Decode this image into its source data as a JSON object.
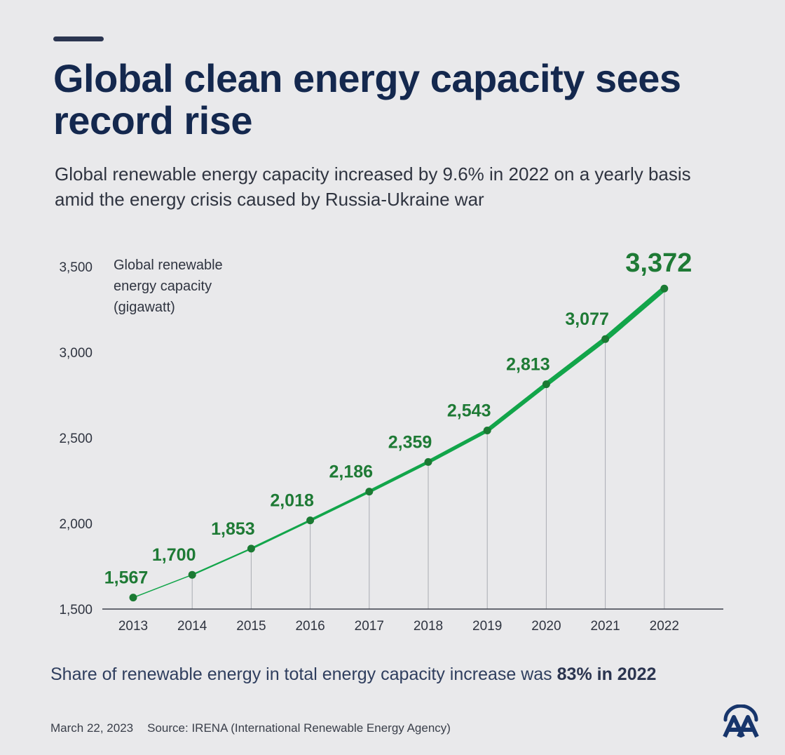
{
  "header": {
    "title": "Global clean energy capacity sees record rise",
    "subtitle": "Global renewable energy capacity increased by 9.6% in 2022 on a yearly basis amid the energy crisis caused by Russia-Ukraine war"
  },
  "chart_data": {
    "type": "line",
    "ylabel_lines": [
      "Global renewable",
      "energy capacity",
      "(gigawatt)"
    ],
    "x": [
      "2013",
      "2014",
      "2015",
      "2016",
      "2017",
      "2018",
      "2019",
      "2020",
      "2021",
      "2022"
    ],
    "values": [
      1567,
      1700,
      1853,
      2018,
      2186,
      2359,
      2543,
      2813,
      3077,
      3372
    ],
    "value_labels": [
      "1,567",
      "1,700",
      "1,853",
      "2,018",
      "2,186",
      "2,359",
      "2,543",
      "2,813",
      "3,077",
      "3,372"
    ],
    "ylim": [
      1500,
      3500
    ],
    "yticks": [
      1500,
      2000,
      2500,
      3000,
      3500
    ],
    "ytick_labels": [
      "1,500",
      "2,000",
      "2,500",
      "3,000",
      "3,500"
    ],
    "grid": false,
    "line_color": "#12a54a",
    "label_color": "#1e7a35",
    "point_color": "#1b7a33"
  },
  "footnote": {
    "text": "Share of renewable energy in total energy capacity increase was ",
    "highlight": "83% in 2022"
  },
  "footer": {
    "date": "March 22, 2023",
    "source": "Source: IRENA (International Renewable Energy Agency)"
  },
  "logo": {
    "icon": "aa-logo-icon",
    "color": "#17356b"
  }
}
